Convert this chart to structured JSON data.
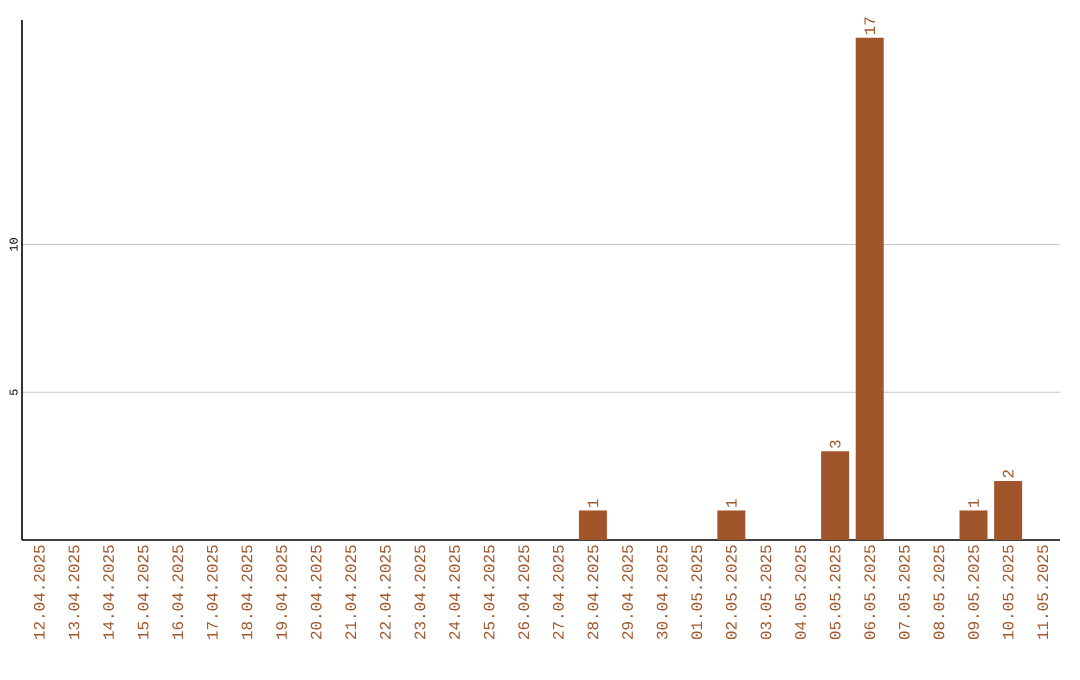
{
  "chart_data": {
    "type": "bar",
    "categories": [
      "12.04.2025",
      "13.04.2025",
      "14.04.2025",
      "15.04.2025",
      "16.04.2025",
      "17.04.2025",
      "18.04.2025",
      "19.04.2025",
      "20.04.2025",
      "21.04.2025",
      "22.04.2025",
      "23.04.2025",
      "24.04.2025",
      "25.04.2025",
      "26.04.2025",
      "27.04.2025",
      "28.04.2025",
      "29.04.2025",
      "30.04.2025",
      "01.05.2025",
      "02.05.2025",
      "03.05.2025",
      "04.05.2025",
      "05.05.2025",
      "06.05.2025",
      "07.05.2025",
      "08.05.2025",
      "09.05.2025",
      "10.05.2025",
      "11.05.2025"
    ],
    "values": [
      0,
      0,
      0,
      0,
      0,
      0,
      0,
      0,
      0,
      0,
      0,
      0,
      0,
      0,
      0,
      0,
      1,
      0,
      0,
      0,
      1,
      0,
      0,
      3,
      17,
      0,
      0,
      1,
      2,
      0
    ],
    "value_labels": [
      null,
      null,
      null,
      null,
      null,
      null,
      null,
      null,
      null,
      null,
      null,
      null,
      null,
      null,
      null,
      null,
      "1",
      null,
      null,
      null,
      "1",
      null,
      null,
      "3",
      "17",
      null,
      null,
      "1",
      "2",
      null
    ],
    "color": "#a0562a",
    "ylim": [
      0,
      17.6
    ],
    "yticks": [
      5,
      10
    ],
    "grid": "y"
  }
}
